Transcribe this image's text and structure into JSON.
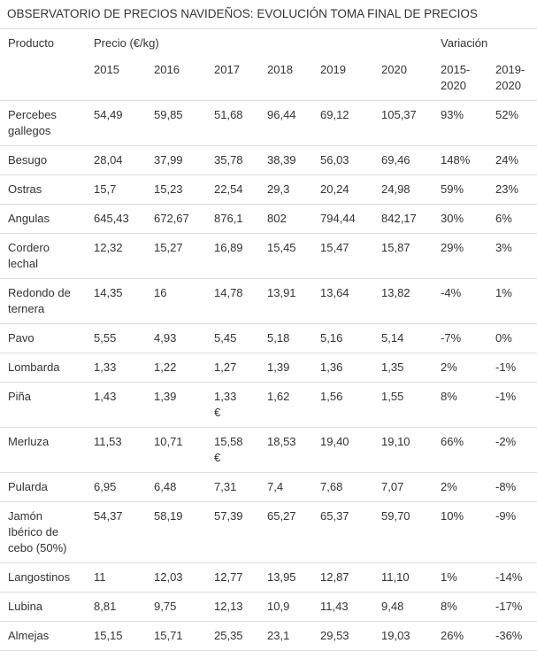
{
  "title": "OBSERVATORIO DE PRECIOS NAVIDEÑOS: EVOLUCIÓN TOMA FINAL DE PRECIOS",
  "header": {
    "product": "Producto",
    "price": "Precio (€/kg)",
    "variation": "Variación",
    "years": [
      "2015",
      "2016",
      "2017",
      "2018",
      "2019",
      "2020"
    ],
    "var_a": [
      "2015-",
      "2020"
    ],
    "var_b": [
      "2019-",
      "2020"
    ]
  },
  "rows": [
    {
      "name": [
        "Percebes",
        "gallegos"
      ],
      "p": [
        "54,49",
        "59,85",
        [
          "51,68"
        ],
        "96,44",
        "69,12",
        "105,37"
      ],
      "v1": "93%",
      "v2": "52%"
    },
    {
      "name": [
        "Besugo"
      ],
      "p": [
        "28,04",
        "37,99",
        [
          "35,78"
        ],
        "38,39",
        "56,03",
        "69,46"
      ],
      "v1": "148%",
      "v2": "24%"
    },
    {
      "name": [
        "Ostras"
      ],
      "p": [
        "15,7",
        "15,23",
        [
          "22,54"
        ],
        "29,3",
        "20,24",
        "24,98"
      ],
      "v1": "59%",
      "v2": "23%"
    },
    {
      "name": [
        "Angulas"
      ],
      "p": [
        "645,43",
        "672,67",
        [
          "876,1"
        ],
        "802",
        "794,44",
        "842,17"
      ],
      "v1": "30%",
      "v2": "6%"
    },
    {
      "name": [
        "Cordero",
        "lechal"
      ],
      "p": [
        "12,32",
        "15,27",
        [
          "16,89"
        ],
        "15,45",
        "15,47",
        "15,87"
      ],
      "v1": "29%",
      "v2": "3%"
    },
    {
      "name": [
        "Redondo de",
        "ternera"
      ],
      "p": [
        "14,35",
        "16",
        [
          "14,78"
        ],
        "13,91",
        "13,64",
        "13,82"
      ],
      "v1": "-4%",
      "v2": "1%"
    },
    {
      "name": [
        "Pavo"
      ],
      "p": [
        "5,55",
        "4,93",
        [
          "5,45"
        ],
        "5,18",
        "5,16",
        "5,14"
      ],
      "v1": "-7%",
      "v2": "0%"
    },
    {
      "name": [
        "Lombarda"
      ],
      "p": [
        "1,33",
        "1,22",
        [
          "1,27"
        ],
        "1,39",
        "1,36",
        "1,35"
      ],
      "v1": "2%",
      "v2": "-1%"
    },
    {
      "name": [
        "Piña"
      ],
      "p": [
        "1,43",
        "1,39",
        [
          "1,33",
          "€"
        ],
        "1,62",
        "1,56",
        "1,55"
      ],
      "v1": "8%",
      "v2": "-1%"
    },
    {
      "name": [
        "Merluza"
      ],
      "p": [
        "11,53",
        "10,71",
        [
          "15,58",
          "€"
        ],
        "18,53",
        "19,40",
        "19,10"
      ],
      "v1": "66%",
      "v2": "-2%"
    },
    {
      "name": [
        "Pularda"
      ],
      "p": [
        "6,95",
        "6,48",
        [
          "7,31"
        ],
        "7,4",
        "7,68",
        "7,07"
      ],
      "v1": "2%",
      "v2": "-8%"
    },
    {
      "name": [
        "Jamón",
        "Ibérico de",
        "cebo (50%)"
      ],
      "p": [
        "54,37",
        "58,19",
        [
          "57,39"
        ],
        "65,27",
        "65,37",
        "59,70"
      ],
      "v1": "10%",
      "v2": "-9%"
    },
    {
      "name": [
        "Langostinos"
      ],
      "p": [
        "11",
        "12,03",
        [
          "12,77"
        ],
        "13,95",
        "12,87",
        "11,10"
      ],
      "v1": "1%",
      "v2": "-14%"
    },
    {
      "name": [
        "Lubina"
      ],
      "p": [
        "8,81",
        "9,75",
        [
          "12,13"
        ],
        "10,9",
        "11,43",
        "9,48"
      ],
      "v1": "8%",
      "v2": "-17%"
    },
    {
      "name": [
        "Almejas"
      ],
      "p": [
        "15,15",
        "15,71",
        [
          "25,35"
        ],
        "23,1",
        "29,53",
        "19,03"
      ],
      "v1": "26%",
      "v2": "-36%"
    }
  ]
}
